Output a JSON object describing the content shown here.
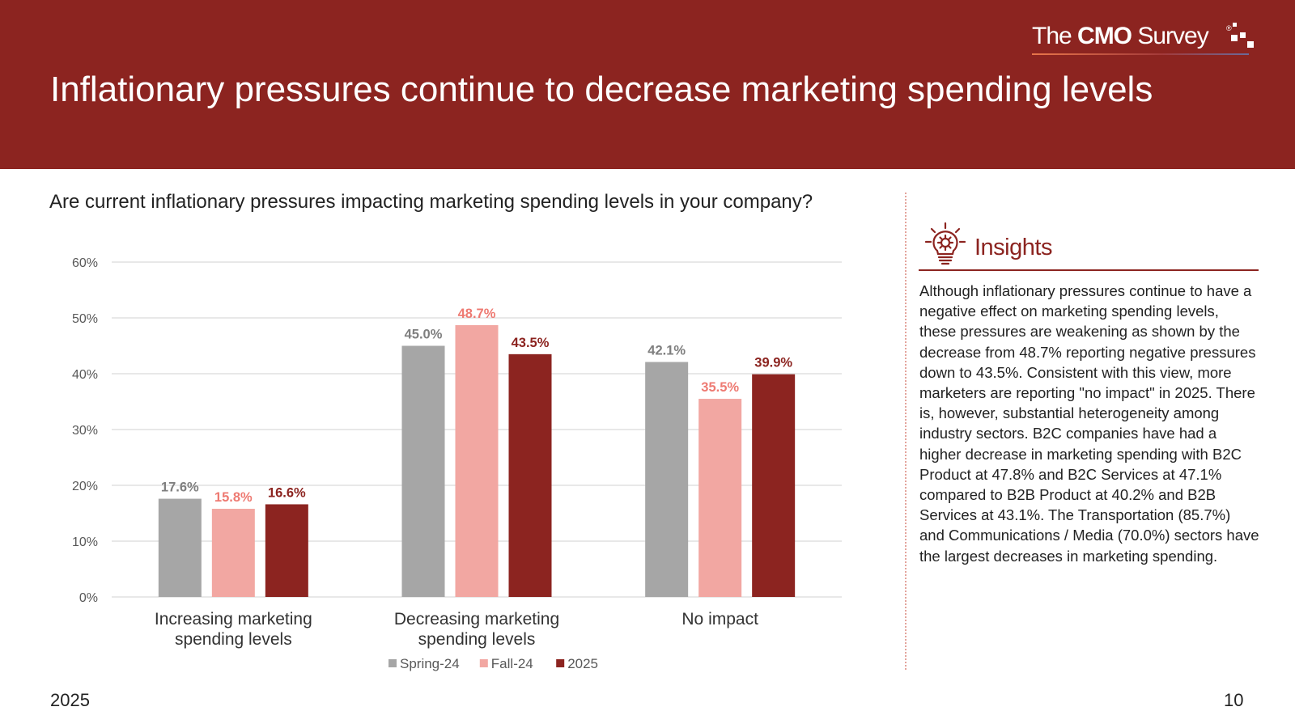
{
  "header": {
    "title": "Inflationary pressures continue to decrease marketing spending levels",
    "logo": {
      "part1": "The ",
      "part2": "CMO",
      "part3": " Survey",
      "reg": "®"
    }
  },
  "question": "Are current inflationary pressures impacting marketing spending levels in your company?",
  "chart_data": {
    "type": "bar",
    "categories": [
      [
        "Increasing marketing",
        "spending levels"
      ],
      [
        "Decreasing marketing",
        "spending levels"
      ],
      [
        "No impact"
      ]
    ],
    "series": [
      {
        "name": "Spring-24",
        "color": "#a6a6a6",
        "label_color": "#7f7f7f",
        "values": [
          17.6,
          45.0,
          42.1
        ],
        "labels": [
          "17.6%",
          "45.0%",
          "42.1%"
        ]
      },
      {
        "name": "Fall-24",
        "color": "#f2a7a2",
        "label_color": "#ee7a72",
        "values": [
          15.8,
          48.7,
          35.5
        ],
        "labels": [
          "15.8%",
          "48.7%",
          "35.5%"
        ]
      },
      {
        "name": "2025",
        "color": "#8c2420",
        "label_color": "#8c2420",
        "values": [
          16.6,
          43.5,
          39.9
        ],
        "labels": [
          "16.6%",
          "43.5%",
          "39.9%"
        ]
      }
    ],
    "ylim": [
      0,
      60
    ],
    "yticks": [
      0,
      10,
      20,
      30,
      40,
      50,
      60
    ],
    "ytick_labels": [
      "0%",
      "10%",
      "20%",
      "30%",
      "40%",
      "50%",
      "60%"
    ],
    "grid": true,
    "legend": "bottom",
    "xlabel": "",
    "ylabel": ""
  },
  "insights": {
    "title": "Insights",
    "icon": "lightbulb-gear-icon",
    "text": "Although inflationary pressures continue to have a negative effect on marketing spending levels, these pressures are weakening as shown by the decrease from 48.7% reporting negative pressures down to 43.5%. Consistent with this view, more marketers are reporting \"no impact\" in 2025. There is, however, substantial heterogeneity among industry sectors. B2C companies have had a higher decrease in marketing spending with B2C Product at 47.8% and B2C Services at 47.1% compared to B2B Product at 40.2% and B2B Services at 43.1%. The Transportation (85.7%) and Communications / Media (70.0%) sectors have the largest decreases in marketing spending."
  },
  "footer": {
    "year": "2025",
    "page": "10"
  }
}
